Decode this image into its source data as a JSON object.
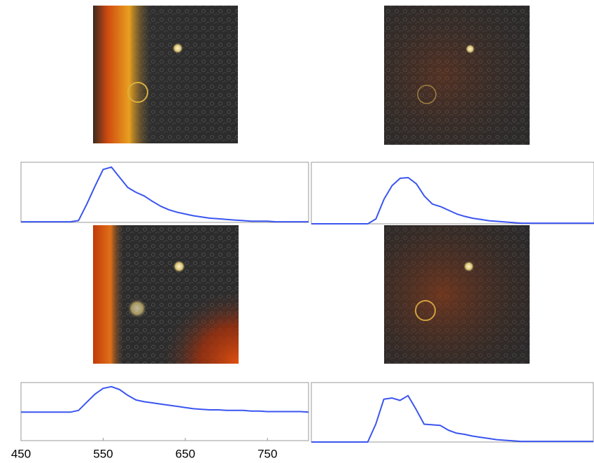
{
  "chart_data": [
    {
      "type": "line",
      "x": [
        450,
        460,
        470,
        480,
        490,
        500,
        510,
        520,
        530,
        540,
        550,
        560,
        570,
        580,
        590,
        600,
        610,
        620,
        630,
        640,
        650,
        660,
        670,
        680,
        690,
        700,
        710,
        720,
        730,
        740,
        750,
        760,
        770,
        780,
        790,
        800
      ],
      "series": [
        {
          "color": "#3a55f0",
          "values": [
            0.01,
            0.01,
            0.01,
            0.01,
            0.01,
            0.01,
            0.01,
            0.03,
            0.3,
            0.6,
            0.88,
            0.92,
            0.75,
            0.58,
            0.5,
            0.44,
            0.35,
            0.27,
            0.21,
            0.17,
            0.14,
            0.11,
            0.09,
            0.07,
            0.06,
            0.05,
            0.04,
            0.03,
            0.02,
            0.02,
            0.02,
            0.01,
            0.01,
            0.01,
            0.01,
            0.01
          ]
        }
      ],
      "xlim": [
        450,
        800
      ],
      "ylim": [
        0,
        1
      ]
    },
    {
      "type": "line",
      "x": [
        450,
        460,
        470,
        480,
        490,
        500,
        510,
        520,
        530,
        540,
        550,
        560,
        570,
        580,
        590,
        600,
        610,
        620,
        630,
        640,
        650,
        660,
        670,
        680,
        690,
        700,
        710,
        720,
        730,
        740,
        750,
        760,
        770,
        780,
        790,
        800
      ],
      "series": [
        {
          "color": "#3a55f0",
          "values": [
            0,
            0,
            0,
            0,
            0,
            0,
            0,
            0,
            0.08,
            0.4,
            0.62,
            0.74,
            0.75,
            0.65,
            0.45,
            0.32,
            0.28,
            0.22,
            0.16,
            0.12,
            0.09,
            0.07,
            0.05,
            0.04,
            0.03,
            0.02,
            0.01,
            0.01,
            0.01,
            0.01,
            0.01,
            0.01,
            0.01,
            0.01,
            0.01,
            0.01
          ]
        }
      ],
      "xlim": [
        450,
        800
      ],
      "ylim": [
        0,
        1
      ]
    },
    {
      "type": "line",
      "x": [
        450,
        460,
        470,
        480,
        490,
        500,
        510,
        520,
        530,
        540,
        550,
        560,
        570,
        580,
        590,
        600,
        610,
        620,
        630,
        640,
        650,
        660,
        670,
        680,
        690,
        700,
        710,
        720,
        730,
        740,
        750,
        760,
        770,
        780,
        790,
        800
      ],
      "series": [
        {
          "color": "#3a55f0",
          "values": [
            0.49,
            0.49,
            0.49,
            0.49,
            0.49,
            0.49,
            0.49,
            0.52,
            0.66,
            0.8,
            0.9,
            0.93,
            0.88,
            0.78,
            0.7,
            0.67,
            0.65,
            0.63,
            0.61,
            0.59,
            0.57,
            0.55,
            0.54,
            0.53,
            0.53,
            0.52,
            0.52,
            0.52,
            0.51,
            0.51,
            0.5,
            0.5,
            0.5,
            0.5,
            0.5,
            0.49
          ]
        }
      ],
      "xlim": [
        450,
        800
      ],
      "ylim": [
        0,
        1
      ],
      "xticks": [
        450,
        550,
        650,
        750
      ]
    },
    {
      "type": "line",
      "x": [
        450,
        460,
        470,
        480,
        490,
        500,
        510,
        520,
        530,
        540,
        550,
        560,
        570,
        580,
        590,
        600,
        610,
        620,
        630,
        640,
        650,
        660,
        670,
        680,
        690,
        700,
        710,
        720,
        730,
        740,
        750,
        760,
        770,
        780,
        790,
        800
      ],
      "series": [
        {
          "color": "#3a55f0",
          "values": [
            0,
            0,
            0,
            0,
            0,
            0,
            0,
            0,
            0.3,
            0.72,
            0.74,
            0.7,
            0.78,
            0.55,
            0.3,
            0.29,
            0.28,
            0.2,
            0.15,
            0.13,
            0.1,
            0.08,
            0.06,
            0.04,
            0.03,
            0.02,
            0.01,
            0.01,
            0.01,
            0.01,
            0.01,
            0.01,
            0.01,
            0.01,
            0.01,
            0.01
          ]
        }
      ],
      "xlim": [
        450,
        800
      ],
      "ylim": [
        0,
        1
      ]
    }
  ]
}
